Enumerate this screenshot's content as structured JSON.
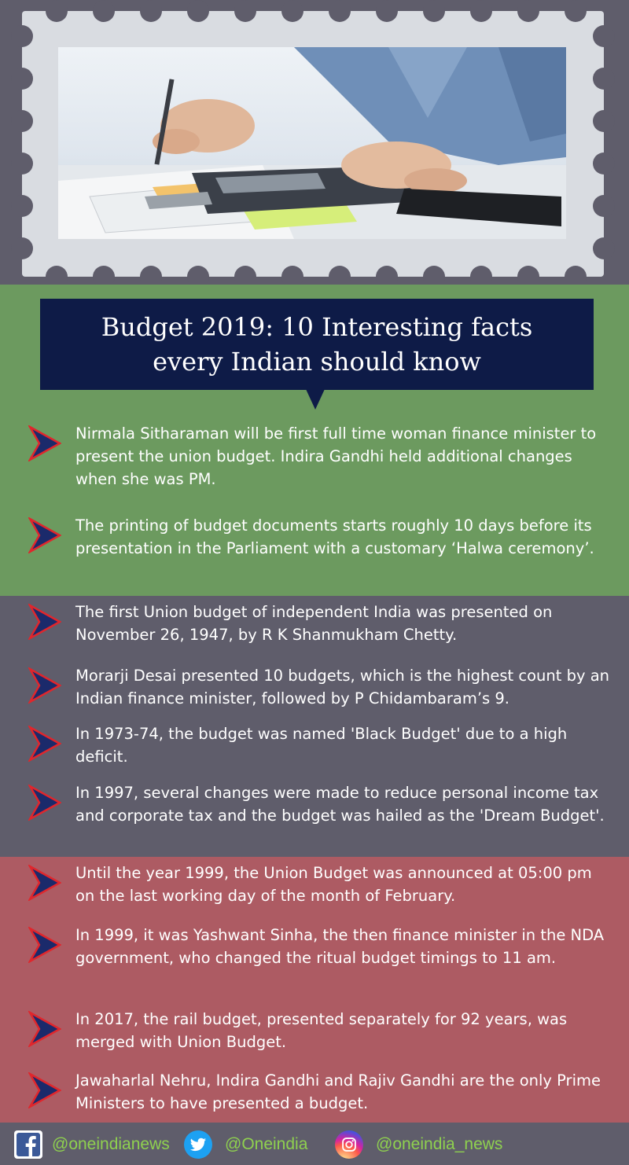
{
  "title": {
    "line1": "Budget 2019: 10 Interesting facts",
    "line2": "every Indian should know"
  },
  "colors": {
    "green_band": "#6c9a5f",
    "gray_band": "#5f5d6b",
    "red_band": "#ad5b63",
    "title_bg": "#0e1b47",
    "social_text": "#8fd14f"
  },
  "facts": [
    {
      "text": "Nirmala Sitharaman will be first full time woman finance minister to present the union budget. Indira Gandhi held additional changes when she was PM."
    },
    {
      "text": "The printing of budget documents starts roughly 10 days before its presentation in the Parliament with a customary ‘Halwa ceremony’."
    },
    {
      "text": "The first Union budget of independent India was presented on November 26, 1947, by R K Shanmukham Chetty."
    },
    {
      "text": "Morarji Desai presented 10 budgets, which is the highest count by an Indian finance minister, followed by P Chidambaram’s 9."
    },
    {
      "text": "In 1973-74, the budget was named 'Black Budget' due to a high deficit."
    },
    {
      "text": "In 1997, several changes were made to reduce personal income tax and corporate tax and the budget was hailed as the 'Dream Budget'."
    },
    {
      "text": "Until the year 1999, the Union Budget was announced at 05:00 pm on the last working day of the month of February."
    },
    {
      "text": "In 1999, it was Yashwant Sinha, the then finance minister in the NDA government, who changed the ritual budget timings to 11 am."
    },
    {
      "text": "In 2017, the rail budget, presented separately for 92 years, was merged with Union Budget."
    },
    {
      "text": "Jawaharlal Nehru, Indira Gandhi and Rajiv Gandhi are the only Prime Ministers to have presented a budget."
    }
  ],
  "social": {
    "facebook": {
      "icon": "facebook-icon",
      "handle": "@oneindianews"
    },
    "twitter": {
      "icon": "twitter-icon",
      "handle": "@Oneindia"
    },
    "instagram": {
      "icon": "instagram-icon",
      "handle": "@oneindia_news"
    }
  }
}
